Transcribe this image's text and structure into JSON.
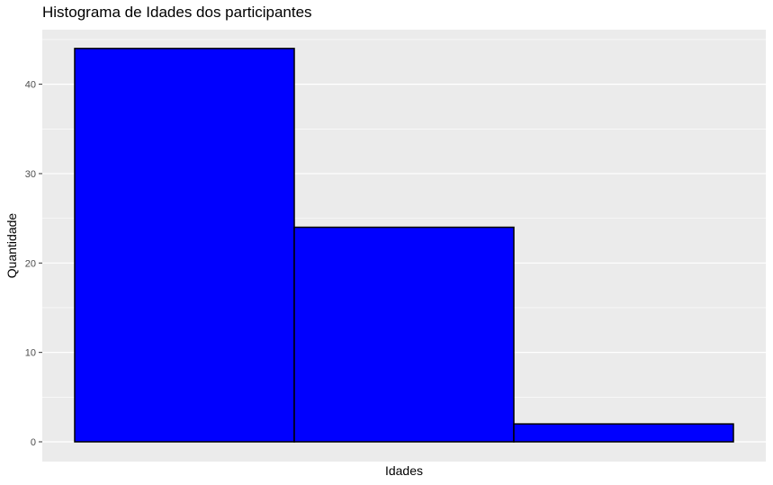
{
  "chart_data": {
    "type": "bar",
    "title": "Histograma de Idades dos participantes",
    "xlabel": "Idades",
    "ylabel": "Quantidade",
    "categories": [
      "",
      "",
      ""
    ],
    "values": [
      44,
      24,
      2
    ],
    "ylim": [
      0,
      45
    ],
    "yticks": [
      "0",
      "10",
      "20",
      "30",
      "40"
    ],
    "grid": true,
    "legend": "none",
    "colors": {
      "bar_fill": "#0000ff",
      "bar_stroke": "#000000",
      "panel_bg": "#ebebeb",
      "grid": "#ffffff",
      "tick_text": "#4d4d4d"
    }
  }
}
